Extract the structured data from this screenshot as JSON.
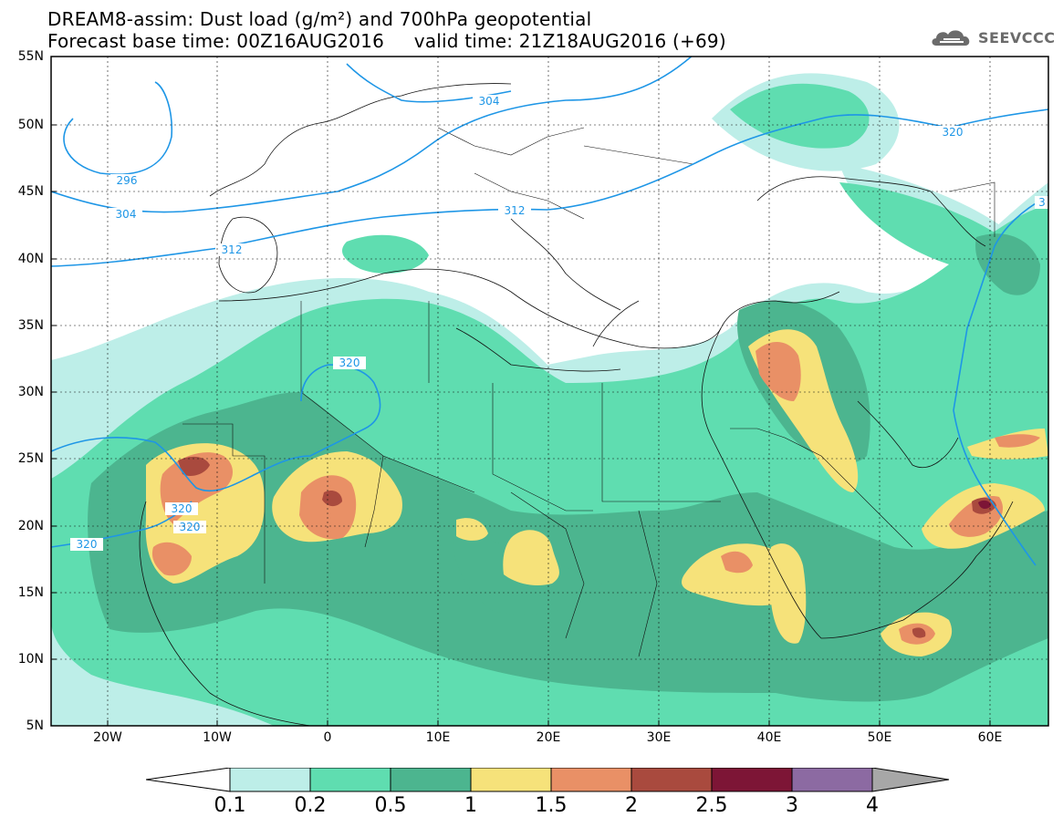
{
  "header": {
    "title_line1": "DREAM8-assim: Dust load (g/m²) and 700hPa geopotential",
    "title_line2": "Forecast base time: 00Z16AUG2016     valid time: 21Z18AUG2016 (+69)"
  },
  "brand": {
    "name": "SEEVCCC",
    "icon": "cloud-logo-icon"
  },
  "map": {
    "lat_labels": [
      "55N",
      "50N",
      "45N",
      "40N",
      "35N",
      "30N",
      "25N",
      "20N",
      "15N",
      "10N",
      "5N"
    ],
    "lon_labels": [
      "20W",
      "10W",
      "0",
      "10E",
      "20E",
      "30E",
      "40E",
      "50E",
      "60E"
    ],
    "contour_labels": [
      "296",
      "304",
      "304",
      "312",
      "312",
      "320",
      "320",
      "320",
      "320",
      "320",
      "3"
    ]
  },
  "legend": {
    "tick_labels": [
      "0.1",
      "0.2",
      "0.5",
      "1",
      "1.5",
      "2",
      "2.5",
      "3",
      "4"
    ],
    "colors": [
      "#bdeee8",
      "#5fddb0",
      "#4cb58f",
      "#f6e27a",
      "#e99066",
      "#a94a3e",
      "#7d1536",
      "#8c6aa2"
    ],
    "low_extension_color": "#ffffff",
    "high_extension_color": "#a7a7a7"
  }
}
